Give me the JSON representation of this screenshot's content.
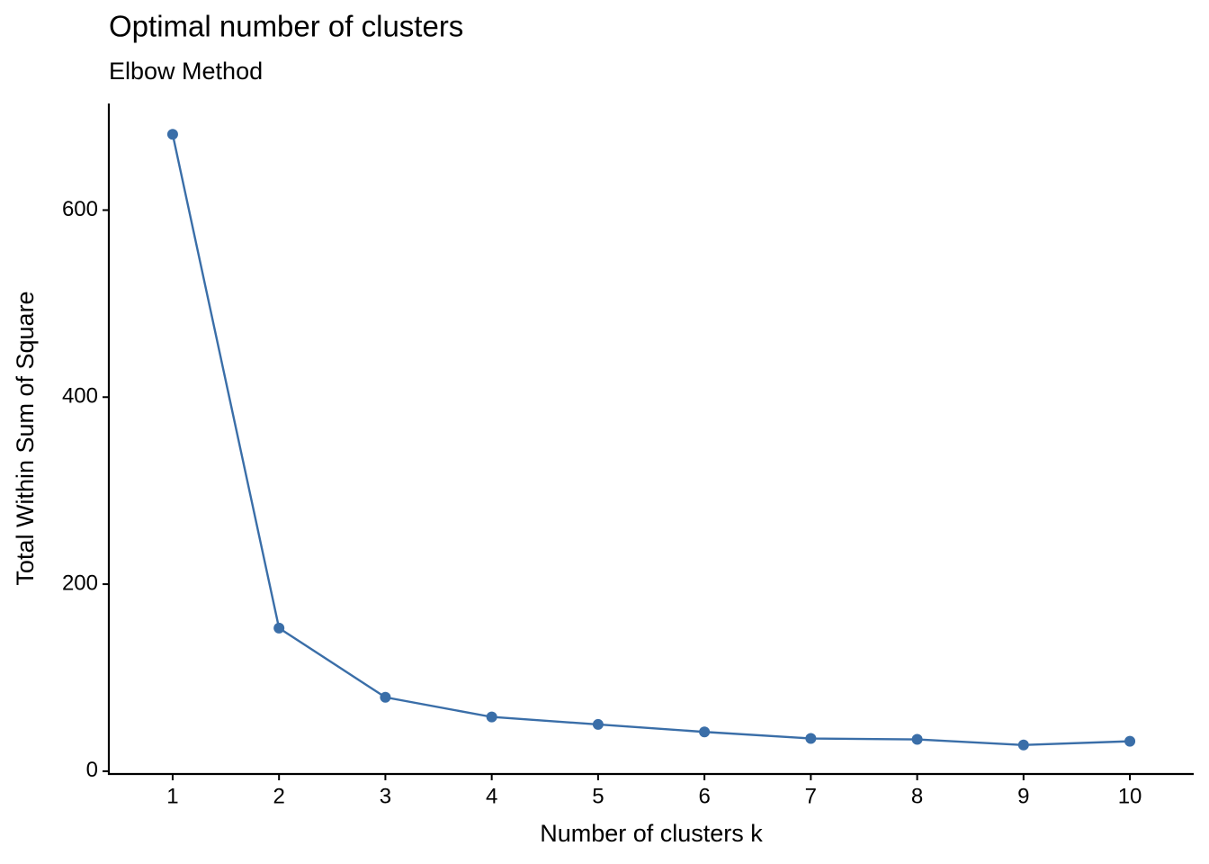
{
  "chart_data": {
    "type": "line",
    "title": "Optimal number of clusters",
    "subtitle": "Elbow Method",
    "x_label": "Number of clusters k",
    "y_label": "Total Within Sum of Square",
    "x": [
      1,
      2,
      3,
      4,
      5,
      6,
      7,
      8,
      9,
      10
    ],
    "series": [
      {
        "name": "wss",
        "color": "#3a6ea8",
        "values": [
          681,
          153,
          79,
          58,
          50,
          42,
          35,
          34,
          28,
          32
        ]
      }
    ],
    "xlim": [
      0.4,
      10.6
    ],
    "xticks": [
      1,
      2,
      3,
      4,
      5,
      6,
      7,
      8,
      9,
      10
    ],
    "ylim": [
      -3,
      714
    ],
    "yticks": [
      0,
      200,
      400,
      600
    ]
  }
}
